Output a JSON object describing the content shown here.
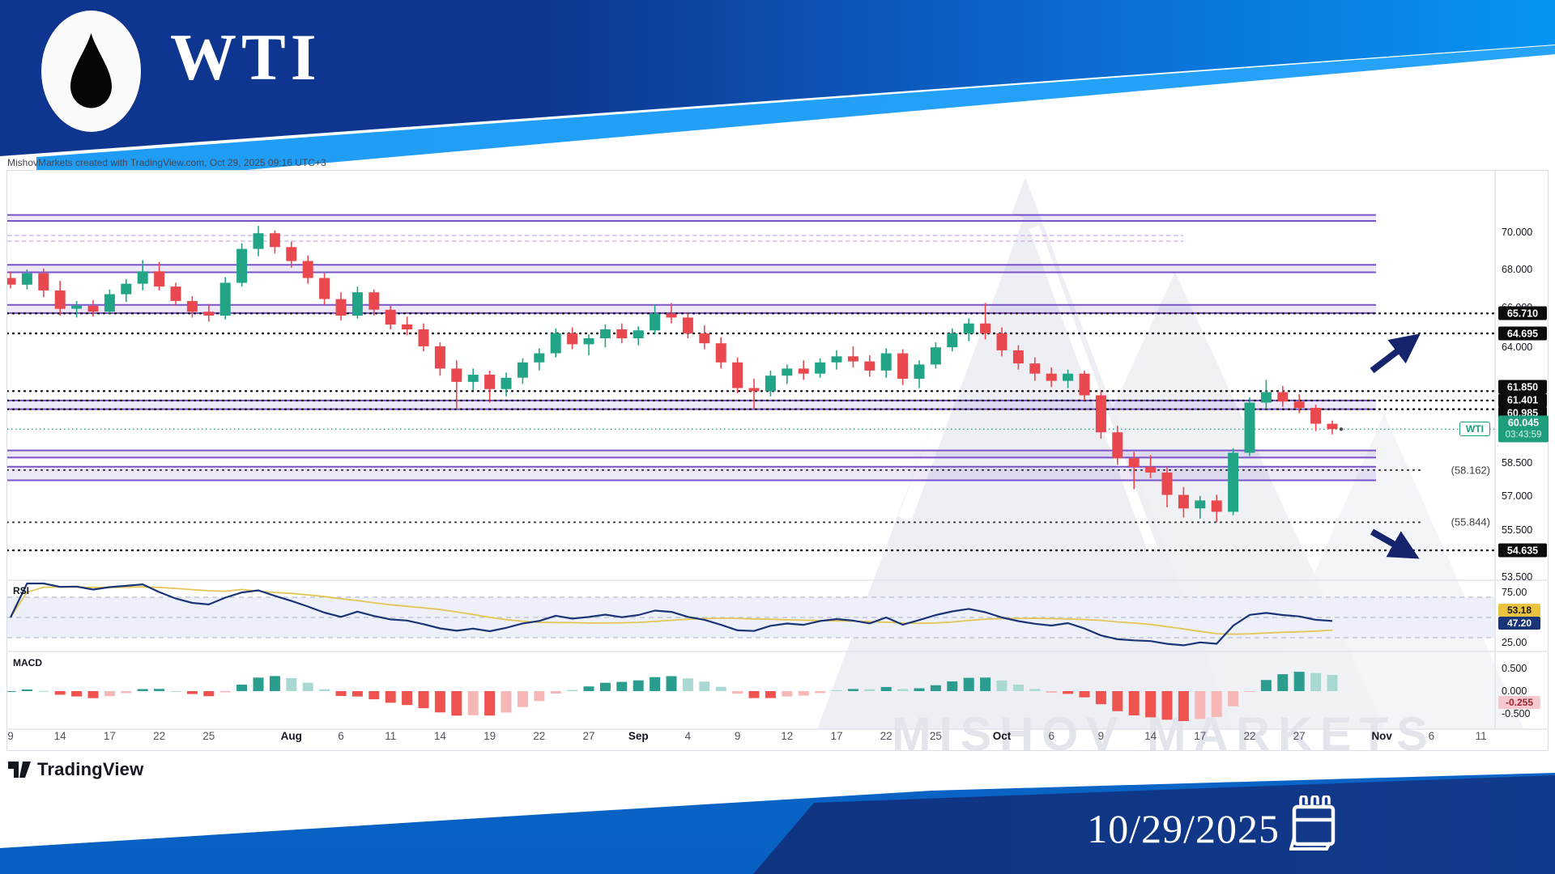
{
  "header": {
    "symbol": "WTI"
  },
  "attribution": "MishovMarkets created with TradingView.com, Oct 29, 2025 09:16 UTC+3",
  "watermark": "MISHOV  MARKETS",
  "footer": {
    "date": "10/29/2025",
    "tradingview_label": "TradingView"
  },
  "chart_data": {
    "type": "candlestick",
    "symbol": "WTI",
    "timeframe": "daily",
    "price_scale": "log",
    "title": "",
    "ylim": [
      53.2,
      71.2
    ],
    "current_price": {
      "label": "WTI",
      "value": "60.045",
      "price": 60.045,
      "countdown": "03:43:59"
    },
    "price_axis_labels": [
      {
        "text": "70.000",
        "price": 70.0
      },
      {
        "text": "68.000",
        "price": 68.0
      },
      {
        "text": "66.000",
        "price": 66.0
      },
      {
        "text": "64.000",
        "price": 64.0
      },
      {
        "text": "58.500",
        "price": 58.5
      },
      {
        "text": "57.000",
        "price": 57.0
      },
      {
        "text": "55.500",
        "price": 55.5
      },
      {
        "text": "53.500",
        "price": 53.5
      }
    ],
    "price_badges": [
      {
        "text": "65.710",
        "price": 65.71,
        "dy": 0
      },
      {
        "text": "64.695",
        "price": 64.695,
        "dy": 0
      },
      {
        "text": "61.850",
        "price": 61.85,
        "dy": -5
      },
      {
        "text": "61.401",
        "price": 61.401,
        "dy": 0
      },
      {
        "text": "60.985",
        "price": 60.985,
        "dy": 5
      },
      {
        "text": "54.635",
        "price": 54.635,
        "dy": 0
      }
    ],
    "paren_labels": [
      {
        "text": "(58.162)",
        "price": 58.162
      },
      {
        "text": "(55.844)",
        "price": 55.844
      }
    ],
    "dotted_levels": [
      65.71,
      64.695,
      61.85,
      61.401,
      60.985,
      54.635
    ],
    "gray_dotted_levels": [
      58.162,
      55.844
    ],
    "zones": [
      [
        70.62,
        70.95
      ],
      [
        67.85,
        68.25
      ],
      [
        65.73,
        66.15
      ],
      [
        60.99,
        61.4
      ],
      [
        58.73,
        59.06
      ],
      [
        57.7,
        58.31
      ]
    ],
    "hatch_zone": [
      69.45,
      70.05
    ],
    "x_labels": [
      {
        "t": "9",
        "s": 0
      },
      {
        "t": "14",
        "s": 3
      },
      {
        "t": "17",
        "s": 6
      },
      {
        "t": "22",
        "s": 9
      },
      {
        "t": "25",
        "s": 12
      },
      {
        "t": "Aug",
        "s": 17,
        "m": true
      },
      {
        "t": "6",
        "s": 20
      },
      {
        "t": "11",
        "s": 23
      },
      {
        "t": "14",
        "s": 26
      },
      {
        "t": "19",
        "s": 29
      },
      {
        "t": "22",
        "s": 32
      },
      {
        "t": "27",
        "s": 35
      },
      {
        "t": "Sep",
        "s": 38,
        "m": true
      },
      {
        "t": "4",
        "s": 41
      },
      {
        "t": "9",
        "s": 44
      },
      {
        "t": "12",
        "s": 47
      },
      {
        "t": "17",
        "s": 50
      },
      {
        "t": "22",
        "s": 53
      },
      {
        "t": "25",
        "s": 56
      },
      {
        "t": "Oct",
        "s": 60,
        "m": true
      },
      {
        "t": "6",
        "s": 63
      },
      {
        "t": "9",
        "s": 66
      },
      {
        "t": "14",
        "s": 69
      },
      {
        "t": "17",
        "s": 72
      },
      {
        "t": "22",
        "s": 75
      },
      {
        "t": "27",
        "s": 78
      },
      {
        "t": "Nov",
        "s": 83,
        "m": true
      },
      {
        "t": "6",
        "s": 86
      },
      {
        "t": "11",
        "s": 89
      }
    ],
    "ohlc": [
      [
        67.55,
        67.9,
        67.0,
        67.2
      ],
      [
        67.2,
        68.0,
        66.95,
        67.8
      ],
      [
        67.8,
        68.05,
        66.55,
        66.9
      ],
      [
        66.9,
        67.4,
        65.6,
        65.95
      ],
      [
        65.95,
        66.35,
        65.5,
        66.1
      ],
      [
        66.1,
        66.4,
        65.55,
        65.8
      ],
      [
        65.8,
        66.95,
        65.7,
        66.7
      ],
      [
        66.7,
        67.5,
        66.3,
        67.25
      ],
      [
        67.25,
        68.5,
        66.9,
        67.9
      ],
      [
        67.9,
        68.4,
        66.9,
        67.1
      ],
      [
        67.1,
        67.3,
        66.1,
        66.35
      ],
      [
        66.35,
        66.6,
        65.5,
        65.8
      ],
      [
        65.8,
        66.2,
        65.3,
        65.6
      ],
      [
        65.6,
        67.6,
        65.4,
        67.3
      ],
      [
        67.3,
        69.4,
        67.1,
        69.1
      ],
      [
        69.1,
        70.35,
        68.7,
        69.95
      ],
      [
        69.95,
        70.1,
        68.85,
        69.2
      ],
      [
        69.2,
        69.5,
        68.1,
        68.45
      ],
      [
        68.45,
        68.75,
        67.25,
        67.55
      ],
      [
        67.55,
        67.8,
        66.15,
        66.45
      ],
      [
        66.45,
        66.8,
        65.35,
        65.6
      ],
      [
        65.6,
        67.1,
        65.45,
        66.8
      ],
      [
        66.8,
        66.95,
        65.6,
        65.9
      ],
      [
        65.9,
        66.1,
        64.9,
        65.15
      ],
      [
        65.15,
        65.55,
        64.6,
        64.9
      ],
      [
        64.9,
        65.2,
        63.8,
        64.05
      ],
      [
        64.05,
        64.25,
        62.6,
        62.95
      ],
      [
        62.95,
        63.35,
        61.0,
        62.3
      ],
      [
        62.3,
        62.95,
        61.9,
        62.65
      ],
      [
        62.65,
        62.85,
        61.3,
        61.95
      ],
      [
        61.95,
        62.75,
        61.6,
        62.5
      ],
      [
        62.5,
        63.45,
        62.2,
        63.25
      ],
      [
        63.25,
        63.95,
        62.85,
        63.7
      ],
      [
        63.7,
        64.95,
        63.5,
        64.7
      ],
      [
        64.7,
        65.0,
        63.9,
        64.15
      ],
      [
        64.15,
        64.65,
        63.6,
        64.45
      ],
      [
        64.45,
        65.15,
        64.0,
        64.9
      ],
      [
        64.9,
        65.2,
        64.2,
        64.45
      ],
      [
        64.45,
        65.05,
        64.1,
        64.85
      ],
      [
        64.85,
        66.15,
        64.65,
        65.7
      ],
      [
        65.7,
        66.25,
        65.2,
        65.5
      ],
      [
        65.5,
        65.75,
        64.45,
        64.7
      ],
      [
        64.7,
        65.1,
        63.9,
        64.2
      ],
      [
        64.2,
        64.5,
        62.95,
        63.25
      ],
      [
        63.25,
        63.5,
        61.75,
        62.0
      ],
      [
        62.0,
        62.45,
        61.0,
        61.85
      ],
      [
        61.85,
        62.85,
        61.6,
        62.6
      ],
      [
        62.6,
        63.15,
        62.2,
        62.95
      ],
      [
        62.95,
        63.35,
        62.4,
        62.7
      ],
      [
        62.7,
        63.45,
        62.5,
        63.25
      ],
      [
        63.25,
        63.85,
        62.9,
        63.55
      ],
      [
        63.55,
        64.05,
        63.0,
        63.3
      ],
      [
        63.3,
        63.6,
        62.55,
        62.85
      ],
      [
        62.85,
        63.95,
        62.5,
        63.7
      ],
      [
        63.7,
        63.9,
        62.15,
        62.45
      ],
      [
        62.45,
        63.35,
        62.0,
        63.15
      ],
      [
        63.15,
        64.25,
        62.95,
        64.0
      ],
      [
        64.0,
        64.95,
        63.8,
        64.7
      ],
      [
        64.7,
        65.45,
        64.3,
        65.2
      ],
      [
        65.2,
        66.25,
        64.4,
        64.7
      ],
      [
        64.7,
        65.0,
        63.55,
        63.85
      ],
      [
        63.85,
        64.1,
        62.9,
        63.2
      ],
      [
        63.2,
        63.5,
        62.35,
        62.7
      ],
      [
        62.7,
        63.0,
        62.05,
        62.35
      ],
      [
        62.35,
        62.9,
        62.0,
        62.7
      ],
      [
        62.7,
        62.85,
        61.4,
        61.65
      ],
      [
        61.65,
        61.85,
        59.6,
        59.9
      ],
      [
        59.9,
        60.2,
        58.4,
        58.7
      ],
      [
        58.7,
        59.0,
        57.3,
        58.3
      ],
      [
        58.3,
        58.85,
        57.8,
        58.05
      ],
      [
        58.05,
        58.3,
        56.5,
        57.05
      ],
      [
        57.05,
        57.4,
        56.05,
        56.45
      ],
      [
        56.45,
        57.0,
        56.0,
        56.8
      ],
      [
        56.8,
        57.05,
        55.85,
        56.3
      ],
      [
        56.3,
        59.15,
        56.15,
        58.95
      ],
      [
        58.95,
        61.55,
        58.8,
        61.3
      ],
      [
        61.3,
        62.4,
        61.0,
        61.8
      ],
      [
        61.8,
        62.1,
        61.1,
        61.35
      ],
      [
        61.35,
        61.7,
        60.8,
        61.05
      ],
      [
        61.05,
        61.2,
        59.95,
        60.3
      ],
      [
        60.3,
        60.45,
        59.8,
        60.045
      ]
    ],
    "rsi": {
      "label": "RSI",
      "upper_label": "75.00",
      "lower_label": "25.00",
      "badge_ma": "53.18",
      "badge_value": "47.20",
      "levels": [
        70,
        50,
        30
      ]
    },
    "macd": {
      "label": "MACD",
      "axis_labels": [
        "0.500",
        "0.000",
        "-0.500"
      ],
      "badge": "-0.255"
    },
    "colors": {
      "up": "#22a586",
      "down": "#e9484f",
      "zone_border": "#7a52c9",
      "zone_fill": "rgba(133,95,210,0.15)",
      "dotted": "#161616",
      "current": "#2aa58d",
      "rsi_line": "#1a3577",
      "rsi_ma": "#e3c558",
      "arrow": "#16246e",
      "macd_pos": "#2a9d8f",
      "macd_pos_pale": "#a9d9d2",
      "macd_neg": "#ef5350",
      "macd_neg_pale": "#f5b8b6"
    }
  }
}
